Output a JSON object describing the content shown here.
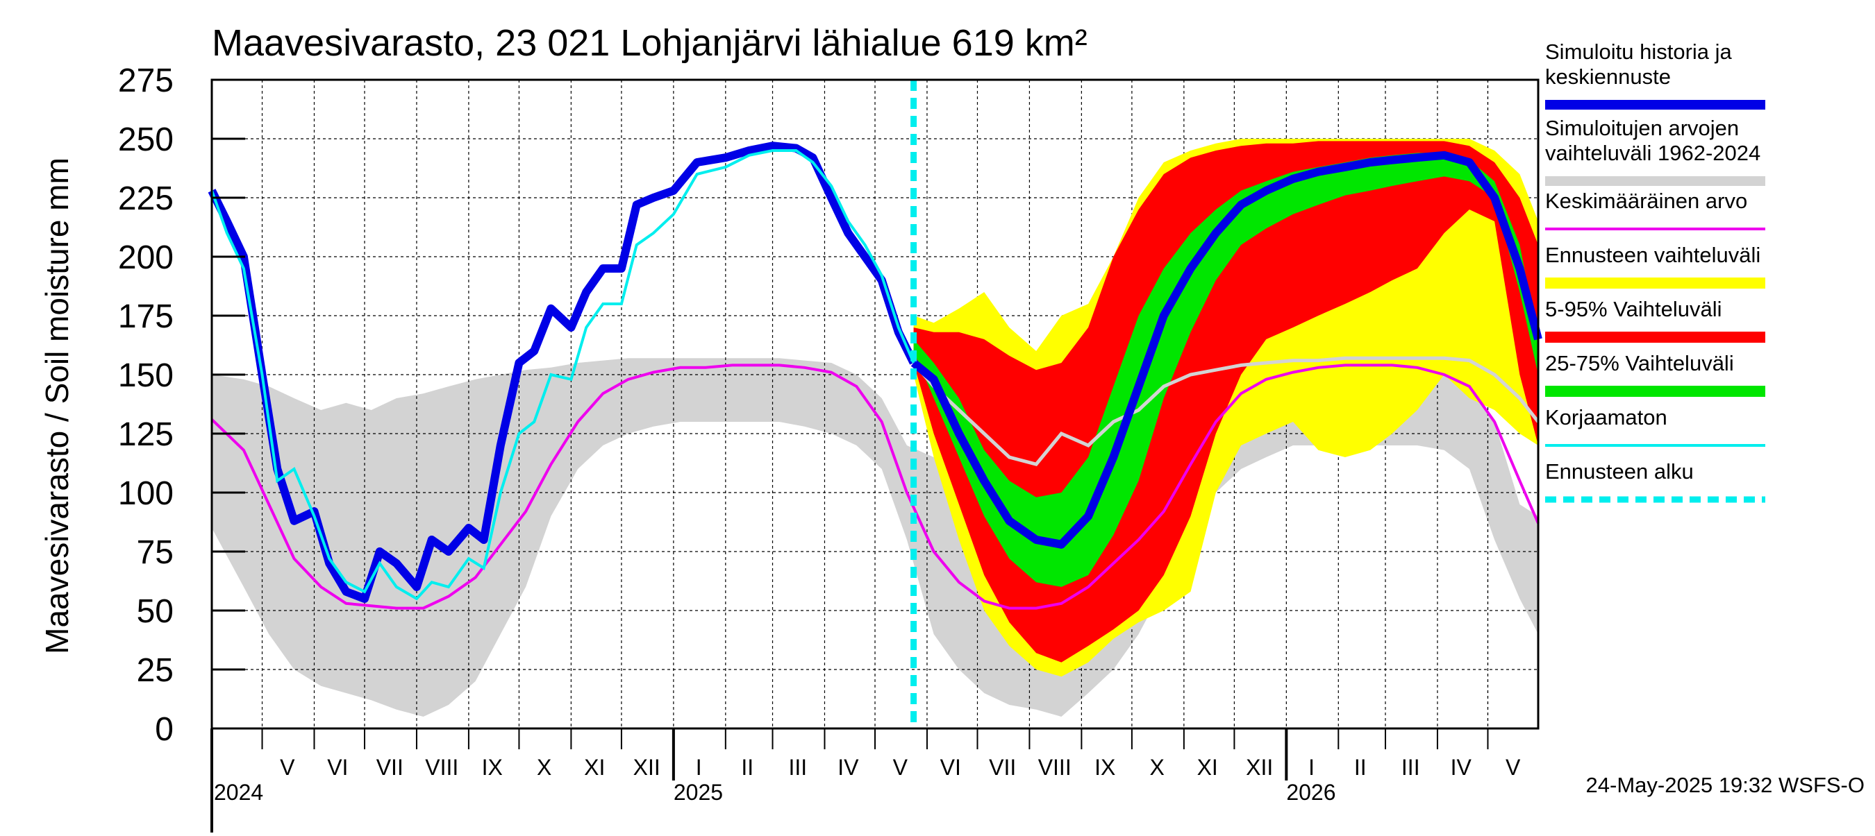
{
  "chart_data": {
    "type": "area",
    "title": "Maavesivarasto, 23 021 Lohjanjärvi lähialue 619 km²",
    "ylabel": "Maavesivarasto / Soil moisture   mm",
    "ylim": [
      0,
      275
    ],
    "yticks": [
      0,
      25,
      50,
      75,
      100,
      125,
      150,
      175,
      200,
      225,
      250,
      275
    ],
    "grid": true,
    "x_range": [
      "2024-04-01",
      "2026-05-31"
    ],
    "forecast_start": "2025-05-24",
    "month_labels": [
      {
        "label": "V",
        "date": "2024-05-16"
      },
      {
        "label": "VI",
        "date": "2024-06-15"
      },
      {
        "label": "VII",
        "date": "2024-07-16"
      },
      {
        "label": "VIII",
        "date": "2024-08-16"
      },
      {
        "label": "IX",
        "date": "2024-09-15"
      },
      {
        "label": "X",
        "date": "2024-10-16"
      },
      {
        "label": "XI",
        "date": "2024-11-15"
      },
      {
        "label": "XII",
        "date": "2024-12-16"
      },
      {
        "label": "I",
        "date": "2025-01-16"
      },
      {
        "label": "II",
        "date": "2025-02-14"
      },
      {
        "label": "III",
        "date": "2025-03-16"
      },
      {
        "label": "IV",
        "date": "2025-04-15"
      },
      {
        "label": "V",
        "date": "2025-05-16"
      },
      {
        "label": "VI",
        "date": "2025-06-15"
      },
      {
        "label": "VII",
        "date": "2025-07-16"
      },
      {
        "label": "VIII",
        "date": "2025-08-16"
      },
      {
        "label": "IX",
        "date": "2025-09-15"
      },
      {
        "label": "X",
        "date": "2025-10-16"
      },
      {
        "label": "XI",
        "date": "2025-11-15"
      },
      {
        "label": "XII",
        "date": "2025-12-16"
      },
      {
        "label": "I",
        "date": "2026-01-16"
      },
      {
        "label": "II",
        "date": "2026-02-14"
      },
      {
        "label": "III",
        "date": "2026-03-16"
      },
      {
        "label": "IV",
        "date": "2026-04-15"
      },
      {
        "label": "V",
        "date": "2026-05-16"
      }
    ],
    "year_labels": [
      {
        "label": "2024",
        "date": "2024-04-01"
      },
      {
        "label": "2025",
        "date": "2025-01-01"
      },
      {
        "label": "2026",
        "date": "2026-01-01"
      }
    ],
    "colors": {
      "history": "#0000e6",
      "range": "#d3d3d3",
      "mean": "#ee00ee",
      "forecast_range": "#ffff00",
      "p5_95": "#ff0000",
      "p25_75": "#00e600",
      "uncorrected": "#00eeee",
      "forecast_start": "#00eeee",
      "median": "#d3d3d3"
    },
    "legend": [
      {
        "label": "Simuloitu historia ja\nkeskiennuste",
        "key": "history",
        "style": "thick"
      },
      {
        "label": "Simuloitujen arvojen\nvaihteluväli 1962-2024",
        "key": "range",
        "style": "medium"
      },
      {
        "label": "Keskimääräinen arvo",
        "key": "mean",
        "style": "thin"
      },
      {
        "label": "Ennusteen vaihteluväli",
        "key": "forecast_range",
        "style": "thick"
      },
      {
        "label": "5-95% Vaihteluväli",
        "key": "p5_95",
        "style": "thick"
      },
      {
        "label": "25-75% Vaihteluväli",
        "key": "p25_75",
        "style": "thick"
      },
      {
        "label": "Korjaamaton",
        "key": "uncorrected",
        "style": "thin"
      },
      {
        "label": "Ennusteen alku",
        "key": "forecast_start",
        "style": "dashed"
      }
    ],
    "series": {
      "hist_range": {
        "x": [
          "2024-04-01",
          "2024-04-20",
          "2024-05-05",
          "2024-05-20",
          "2024-06-05",
          "2024-06-20",
          "2024-07-05",
          "2024-07-20",
          "2024-08-05",
          "2024-08-20",
          "2024-09-05",
          "2024-09-20",
          "2024-10-05",
          "2024-10-20",
          "2024-11-05",
          "2024-11-20",
          "2024-12-05",
          "2024-12-20",
          "2025-01-05",
          "2025-01-20",
          "2025-02-05",
          "2025-02-20",
          "2025-03-05",
          "2025-03-20",
          "2025-04-05",
          "2025-04-20",
          "2025-05-05",
          "2025-05-20",
          "2025-06-05",
          "2025-06-20",
          "2025-07-05",
          "2025-07-20",
          "2025-08-05",
          "2025-08-20",
          "2025-09-05",
          "2025-09-20",
          "2025-10-05",
          "2025-10-20",
          "2025-11-05",
          "2025-11-20",
          "2025-12-05",
          "2025-12-20",
          "2026-01-05",
          "2026-01-20",
          "2026-02-05",
          "2026-02-20",
          "2026-03-05",
          "2026-03-20",
          "2026-04-05",
          "2026-04-20",
          "2026-05-05",
          "2026-05-20",
          "2026-05-31"
        ],
        "low": [
          85,
          60,
          40,
          25,
          18,
          15,
          12,
          8,
          5,
          10,
          20,
          40,
          60,
          90,
          110,
          120,
          125,
          128,
          130,
          130,
          130,
          130,
          130,
          128,
          125,
          120,
          110,
          80,
          40,
          25,
          15,
          10,
          8,
          5,
          15,
          25,
          40,
          60,
          80,
          100,
          110,
          115,
          120,
          120,
          120,
          120,
          120,
          120,
          118,
          110,
          80,
          55,
          40
        ],
        "high": [
          150,
          148,
          145,
          140,
          135,
          138,
          135,
          140,
          142,
          145,
          148,
          150,
          152,
          153,
          155,
          156,
          157,
          157,
          157,
          157,
          157,
          157,
          157,
          156,
          155,
          150,
          140,
          120,
          115,
          118,
          120,
          130,
          140,
          140,
          145,
          150,
          152,
          155,
          156,
          157,
          157,
          157,
          157,
          157,
          157,
          157,
          157,
          156,
          152,
          145,
          130,
          95,
          90
        ]
      },
      "mean": {
        "x": [
          "2024-04-01",
          "2024-04-20",
          "2024-05-05",
          "2024-05-20",
          "2024-06-05",
          "2024-06-20",
          "2024-07-05",
          "2024-07-20",
          "2024-08-05",
          "2024-08-20",
          "2024-09-05",
          "2024-09-20",
          "2024-10-05",
          "2024-10-20",
          "2024-11-05",
          "2024-11-20",
          "2024-12-05",
          "2024-12-20",
          "2025-01-05",
          "2025-01-20",
          "2025-02-05",
          "2025-02-20",
          "2025-03-05",
          "2025-03-20",
          "2025-04-05",
          "2025-04-20",
          "2025-05-05",
          "2025-05-20",
          "2025-06-05",
          "2025-06-20",
          "2025-07-05",
          "2025-07-20",
          "2025-08-05",
          "2025-08-20",
          "2025-09-05",
          "2025-09-20",
          "2025-10-05",
          "2025-10-20",
          "2025-11-05",
          "2025-11-20",
          "2025-12-05",
          "2025-12-20",
          "2026-01-05",
          "2026-01-20",
          "2026-02-05",
          "2026-02-20",
          "2026-03-05",
          "2026-03-20",
          "2026-04-05",
          "2026-04-20",
          "2026-05-05",
          "2026-05-20",
          "2026-05-31"
        ],
        "y": [
          131,
          118,
          95,
          72,
          60,
          53,
          52,
          51,
          51,
          56,
          64,
          78,
          92,
          112,
          130,
          142,
          148,
          151,
          153,
          153,
          154,
          154,
          154,
          153,
          151,
          145,
          130,
          100,
          75,
          62,
          54,
          51,
          51,
          53,
          60,
          70,
          80,
          92,
          112,
          130,
          142,
          148,
          151,
          153,
          154,
          154,
          154,
          153,
          150,
          145,
          130,
          105,
          87
        ]
      },
      "forecast_range": {
        "x": [
          "2025-05-24",
          "2025-06-05",
          "2025-06-20",
          "2025-07-05",
          "2025-07-20",
          "2025-08-05",
          "2025-08-20",
          "2025-09-05",
          "2025-09-20",
          "2025-10-05",
          "2025-10-20",
          "2025-11-05",
          "2025-11-20",
          "2025-12-05",
          "2025-12-20",
          "2026-01-05",
          "2026-01-20",
          "2026-02-05",
          "2026-02-20",
          "2026-03-05",
          "2026-03-20",
          "2026-04-05",
          "2026-04-20",
          "2026-05-05",
          "2026-05-20",
          "2026-05-31"
        ],
        "low": [
          150,
          115,
          80,
          50,
          35,
          25,
          22,
          28,
          38,
          45,
          50,
          58,
          100,
          120,
          125,
          130,
          118,
          115,
          118,
          125,
          135,
          150,
          140,
          135,
          125,
          120
        ],
        "high": [
          175,
          172,
          178,
          185,
          170,
          160,
          175,
          180,
          200,
          225,
          240,
          245,
          248,
          250,
          250,
          250,
          250,
          250,
          250,
          250,
          250,
          250,
          250,
          245,
          235,
          215
        ]
      },
      "p5_95": {
        "x": [
          "2025-05-24",
          "2025-06-05",
          "2025-06-20",
          "2025-07-05",
          "2025-07-20",
          "2025-08-05",
          "2025-08-20",
          "2025-09-05",
          "2025-09-20",
          "2025-10-05",
          "2025-10-20",
          "2025-11-05",
          "2025-11-20",
          "2025-12-05",
          "2025-12-20",
          "2026-01-05",
          "2026-01-20",
          "2026-02-05",
          "2026-02-20",
          "2026-03-05",
          "2026-03-20",
          "2026-04-05",
          "2026-04-20",
          "2026-05-05",
          "2026-05-20",
          "2026-05-31"
        ],
        "low": [
          155,
          125,
          95,
          65,
          45,
          32,
          28,
          35,
          42,
          50,
          65,
          90,
          125,
          150,
          165,
          170,
          175,
          180,
          185,
          190,
          195,
          210,
          220,
          215,
          150,
          120
        ],
        "high": [
          170,
          168,
          168,
          165,
          158,
          152,
          155,
          170,
          200,
          220,
          235,
          242,
          245,
          247,
          248,
          248,
          249,
          249,
          249,
          249,
          249,
          249,
          247,
          240,
          225,
          205
        ]
      },
      "p25_75": {
        "x": [
          "2025-05-24",
          "2025-06-05",
          "2025-06-20",
          "2025-07-05",
          "2025-07-20",
          "2025-08-05",
          "2025-08-20",
          "2025-09-05",
          "2025-09-20",
          "2025-10-05",
          "2025-10-20",
          "2025-11-05",
          "2025-11-20",
          "2025-12-05",
          "2025-12-20",
          "2026-01-05",
          "2026-01-20",
          "2026-02-05",
          "2026-02-20",
          "2026-03-05",
          "2026-03-20",
          "2026-04-05",
          "2026-04-20",
          "2026-05-05",
          "2026-05-20",
          "2026-05-31"
        ],
        "low": [
          160,
          140,
          115,
          90,
          72,
          62,
          60,
          65,
          82,
          105,
          140,
          168,
          190,
          205,
          212,
          218,
          222,
          226,
          228,
          230,
          232,
          234,
          232,
          225,
          185,
          150
        ],
        "high": [
          165,
          155,
          140,
          118,
          105,
          98,
          100,
          115,
          145,
          175,
          195,
          210,
          220,
          228,
          232,
          236,
          238,
          240,
          242,
          243,
          244,
          244,
          241,
          232,
          205,
          165
        ]
      },
      "history": {
        "x": [
          "2024-04-01",
          "2024-04-10",
          "2024-04-20",
          "2024-05-01",
          "2024-05-10",
          "2024-05-20",
          "2024-06-01",
          "2024-06-10",
          "2024-06-20",
          "2024-07-01",
          "2024-07-10",
          "2024-07-20",
          "2024-08-01",
          "2024-08-10",
          "2024-08-20",
          "2024-09-01",
          "2024-09-10",
          "2024-09-20",
          "2024-10-01",
          "2024-10-10",
          "2024-10-20",
          "2024-11-01",
          "2024-11-10",
          "2024-11-20",
          "2024-12-01",
          "2024-12-10",
          "2024-12-20",
          "2025-01-01",
          "2025-01-15",
          "2025-02-01",
          "2025-02-15",
          "2025-03-01",
          "2025-03-15",
          "2025-03-25",
          "2025-04-05",
          "2025-04-15",
          "2025-04-25",
          "2025-05-05",
          "2025-05-15",
          "2025-05-24"
        ],
        "y": [
          228,
          215,
          200,
          150,
          110,
          88,
          92,
          70,
          58,
          55,
          75,
          70,
          60,
          80,
          75,
          85,
          80,
          120,
          155,
          160,
          178,
          170,
          185,
          195,
          195,
          222,
          225,
          228,
          240,
          242,
          245,
          247,
          246,
          242,
          225,
          210,
          200,
          190,
          168,
          155
        ]
      },
      "median": {
        "x": [
          "2025-05-24",
          "2025-06-05",
          "2025-06-20",
          "2025-07-05",
          "2025-07-20",
          "2025-08-05",
          "2025-08-20",
          "2025-09-05",
          "2025-09-20",
          "2025-10-05",
          "2025-10-20",
          "2025-11-05",
          "2025-11-20",
          "2025-12-05",
          "2025-12-20",
          "2026-01-05",
          "2026-01-20",
          "2026-02-05",
          "2026-02-20",
          "2026-03-05",
          "2026-03-20",
          "2026-04-05",
          "2026-04-20",
          "2026-05-05",
          "2026-05-20",
          "2026-05-31"
        ],
        "y": [
          155,
          145,
          135,
          125,
          115,
          112,
          125,
          120,
          130,
          135,
          145,
          150,
          152,
          154,
          155,
          156,
          156,
          157,
          157,
          157,
          157,
          157,
          156,
          150,
          140,
          130
        ]
      },
      "forecast_median": {
        "x": [
          "2025-05-24",
          "2025-06-05",
          "2025-06-20",
          "2025-07-05",
          "2025-07-20",
          "2025-08-05",
          "2025-08-20",
          "2025-09-05",
          "2025-09-20",
          "2025-10-05",
          "2025-10-20",
          "2025-11-05",
          "2025-11-20",
          "2025-12-05",
          "2025-12-20",
          "2026-01-05",
          "2026-01-20",
          "2026-02-05",
          "2026-02-20",
          "2026-03-05",
          "2026-03-20",
          "2026-04-05",
          "2026-04-20",
          "2026-05-05",
          "2026-05-20",
          "2026-05-31"
        ],
        "y": [
          155,
          148,
          125,
          105,
          88,
          80,
          78,
          90,
          115,
          145,
          175,
          195,
          210,
          222,
          228,
          233,
          236,
          238,
          240,
          241,
          242,
          243,
          240,
          225,
          195,
          165
        ]
      },
      "uncorrected": {
        "x": [
          "2024-04-01",
          "2024-04-10",
          "2024-04-20",
          "2024-05-01",
          "2024-05-10",
          "2024-05-20",
          "2024-06-01",
          "2024-06-10",
          "2024-06-20",
          "2024-07-01",
          "2024-07-10",
          "2024-07-20",
          "2024-08-01",
          "2024-08-10",
          "2024-08-20",
          "2024-09-01",
          "2024-09-10",
          "2024-09-20",
          "2024-10-01",
          "2024-10-10",
          "2024-10-20",
          "2024-11-01",
          "2024-11-10",
          "2024-11-20",
          "2024-12-01",
          "2024-12-10",
          "2024-12-20",
          "2025-01-01",
          "2025-01-15",
          "2025-02-01",
          "2025-02-15",
          "2025-03-01",
          "2025-03-15",
          "2025-03-25",
          "2025-04-05",
          "2025-04-15",
          "2025-04-25",
          "2025-05-05",
          "2025-05-15",
          "2025-05-24"
        ],
        "y": [
          228,
          210,
          195,
          150,
          105,
          110,
          90,
          72,
          62,
          58,
          70,
          60,
          55,
          62,
          60,
          72,
          68,
          100,
          125,
          130,
          150,
          148,
          170,
          180,
          180,
          205,
          210,
          218,
          235,
          238,
          243,
          245,
          245,
          240,
          230,
          215,
          205,
          192,
          170,
          155
        ]
      }
    }
  },
  "footer": {
    "timestamp": "24-May-2025 19:32 WSFS-O"
  }
}
